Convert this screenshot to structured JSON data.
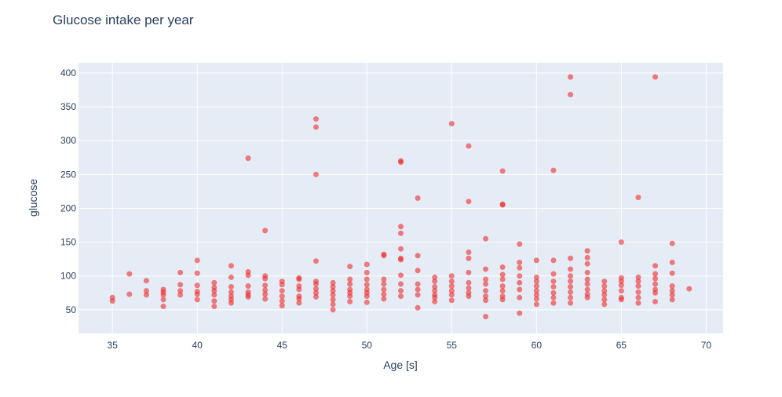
{
  "chart_data": {
    "type": "scatter",
    "title": "Glucose intake per year",
    "xlabel": "Age [s]",
    "ylabel": "glucose",
    "xlim": [
      33,
      71
    ],
    "ylim": [
      15,
      415
    ],
    "xticks": [
      35,
      40,
      45,
      50,
      55,
      60,
      65,
      70
    ],
    "yticks": [
      50,
      100,
      150,
      200,
      250,
      300,
      350,
      400
    ],
    "grid": true,
    "marker_color": "#ef2b2b",
    "plot_background": "#e5ecf6",
    "points": [
      [
        35,
        68
      ],
      [
        35,
        63
      ],
      [
        36,
        103
      ],
      [
        36,
        73
      ],
      [
        37,
        93
      ],
      [
        37,
        78
      ],
      [
        37,
        72
      ],
      [
        38,
        80
      ],
      [
        38,
        76
      ],
      [
        38,
        72
      ],
      [
        38,
        65
      ],
      [
        38,
        55
      ],
      [
        39,
        105
      ],
      [
        39,
        87
      ],
      [
        39,
        78
      ],
      [
        39,
        72
      ],
      [
        40,
        123
      ],
      [
        40,
        104
      ],
      [
        40,
        86
      ],
      [
        40,
        77
      ],
      [
        40,
        73
      ],
      [
        40,
        65
      ],
      [
        41,
        90
      ],
      [
        41,
        83
      ],
      [
        41,
        78
      ],
      [
        41,
        72
      ],
      [
        41,
        63
      ],
      [
        41,
        55
      ],
      [
        42,
        115
      ],
      [
        42,
        98
      ],
      [
        42,
        84
      ],
      [
        42,
        76
      ],
      [
        42,
        70
      ],
      [
        42,
        65
      ],
      [
        42,
        60
      ],
      [
        43,
        274
      ],
      [
        43,
        106
      ],
      [
        43,
        101
      ],
      [
        43,
        85
      ],
      [
        43,
        76
      ],
      [
        43,
        72
      ],
      [
        43,
        69
      ],
      [
        44,
        167
      ],
      [
        44,
        100
      ],
      [
        44,
        96
      ],
      [
        44,
        86
      ],
      [
        44,
        79
      ],
      [
        44,
        73
      ],
      [
        44,
        66
      ],
      [
        45,
        92
      ],
      [
        45,
        87
      ],
      [
        45,
        78
      ],
      [
        45,
        70
      ],
      [
        45,
        63
      ],
      [
        45,
        56
      ],
      [
        46,
        97
      ],
      [
        46,
        95
      ],
      [
        46,
        85
      ],
      [
        46,
        80
      ],
      [
        46,
        70
      ],
      [
        46,
        66
      ],
      [
        46,
        60
      ],
      [
        47,
        332
      ],
      [
        47,
        320
      ],
      [
        47,
        250
      ],
      [
        47,
        122
      ],
      [
        47,
        92
      ],
      [
        47,
        88
      ],
      [
        47,
        81
      ],
      [
        47,
        75
      ],
      [
        47,
        69
      ],
      [
        48,
        90
      ],
      [
        48,
        84
      ],
      [
        48,
        78
      ],
      [
        48,
        72
      ],
      [
        48,
        65
      ],
      [
        48,
        58
      ],
      [
        48,
        50
      ],
      [
        49,
        114
      ],
      [
        49,
        95
      ],
      [
        49,
        88
      ],
      [
        49,
        80
      ],
      [
        49,
        75
      ],
      [
        49,
        70
      ],
      [
        49,
        62
      ],
      [
        50,
        117
      ],
      [
        50,
        105
      ],
      [
        50,
        95
      ],
      [
        50,
        87
      ],
      [
        50,
        80
      ],
      [
        50,
        75
      ],
      [
        50,
        70
      ],
      [
        50,
        61
      ],
      [
        51,
        132
      ],
      [
        51,
        130
      ],
      [
        51,
        95
      ],
      [
        51,
        88
      ],
      [
        51,
        80
      ],
      [
        51,
        73
      ],
      [
        51,
        66
      ],
      [
        52,
        270
      ],
      [
        52,
        268
      ],
      [
        52,
        173
      ],
      [
        52,
        163
      ],
      [
        52,
        140
      ],
      [
        52,
        126
      ],
      [
        52,
        124
      ],
      [
        52,
        101
      ],
      [
        52,
        88
      ],
      [
        52,
        78
      ],
      [
        52,
        70
      ],
      [
        53,
        215
      ],
      [
        53,
        130
      ],
      [
        53,
        108
      ],
      [
        53,
        88
      ],
      [
        53,
        80
      ],
      [
        53,
        72
      ],
      [
        53,
        53
      ],
      [
        54,
        98
      ],
      [
        54,
        92
      ],
      [
        54,
        84
      ],
      [
        54,
        78
      ],
      [
        54,
        72
      ],
      [
        54,
        68
      ],
      [
        54,
        62
      ],
      [
        55,
        325
      ],
      [
        55,
        100
      ],
      [
        55,
        92
      ],
      [
        55,
        85
      ],
      [
        55,
        78
      ],
      [
        55,
        72
      ],
      [
        55,
        64
      ],
      [
        56,
        292
      ],
      [
        56,
        210
      ],
      [
        56,
        135
      ],
      [
        56,
        126
      ],
      [
        56,
        105
      ],
      [
        56,
        90
      ],
      [
        56,
        82
      ],
      [
        56,
        75
      ],
      [
        56,
        70
      ],
      [
        57,
        155
      ],
      [
        57,
        110
      ],
      [
        57,
        95
      ],
      [
        57,
        88
      ],
      [
        57,
        78
      ],
      [
        57,
        70
      ],
      [
        57,
        64
      ],
      [
        57,
        40
      ],
      [
        58,
        255
      ],
      [
        58,
        206
      ],
      [
        58,
        205
      ],
      [
        58,
        113
      ],
      [
        58,
        102
      ],
      [
        58,
        95
      ],
      [
        58,
        85
      ],
      [
        58,
        78
      ],
      [
        58,
        70
      ],
      [
        58,
        65
      ],
      [
        59,
        147
      ],
      [
        59,
        120
      ],
      [
        59,
        112
      ],
      [
        59,
        100
      ],
      [
        59,
        90
      ],
      [
        59,
        80
      ],
      [
        59,
        68
      ],
      [
        59,
        45
      ],
      [
        60,
        123
      ],
      [
        60,
        98
      ],
      [
        60,
        92
      ],
      [
        60,
        85
      ],
      [
        60,
        78
      ],
      [
        60,
        72
      ],
      [
        60,
        66
      ],
      [
        60,
        58
      ],
      [
        61,
        256
      ],
      [
        61,
        123
      ],
      [
        61,
        103
      ],
      [
        61,
        92
      ],
      [
        61,
        84
      ],
      [
        61,
        75
      ],
      [
        61,
        68
      ],
      [
        61,
        60
      ],
      [
        62,
        394
      ],
      [
        62,
        368
      ],
      [
        62,
        126
      ],
      [
        62,
        110
      ],
      [
        62,
        100
      ],
      [
        62,
        92
      ],
      [
        62,
        84
      ],
      [
        62,
        76
      ],
      [
        62,
        68
      ],
      [
        62,
        60
      ],
      [
        63,
        137
      ],
      [
        63,
        127
      ],
      [
        63,
        118
      ],
      [
        63,
        105
      ],
      [
        63,
        95
      ],
      [
        63,
        88
      ],
      [
        63,
        80
      ],
      [
        63,
        73
      ],
      [
        63,
        68
      ],
      [
        64,
        92
      ],
      [
        64,
        85
      ],
      [
        64,
        78
      ],
      [
        64,
        72
      ],
      [
        64,
        65
      ],
      [
        64,
        58
      ],
      [
        65,
        150
      ],
      [
        65,
        97
      ],
      [
        65,
        92
      ],
      [
        65,
        86
      ],
      [
        65,
        78
      ],
      [
        65,
        68
      ],
      [
        65,
        65
      ],
      [
        66,
        216
      ],
      [
        66,
        98
      ],
      [
        66,
        92
      ],
      [
        66,
        85
      ],
      [
        66,
        76
      ],
      [
        66,
        68
      ],
      [
        66,
        60
      ],
      [
        67,
        394
      ],
      [
        67,
        115
      ],
      [
        67,
        103
      ],
      [
        67,
        96
      ],
      [
        67,
        88
      ],
      [
        67,
        80
      ],
      [
        67,
        75
      ],
      [
        67,
        62
      ],
      [
        68,
        148
      ],
      [
        68,
        120
      ],
      [
        68,
        104
      ],
      [
        68,
        85
      ],
      [
        68,
        78
      ],
      [
        68,
        72
      ],
      [
        68,
        65
      ],
      [
        69,
        81
      ]
    ]
  }
}
